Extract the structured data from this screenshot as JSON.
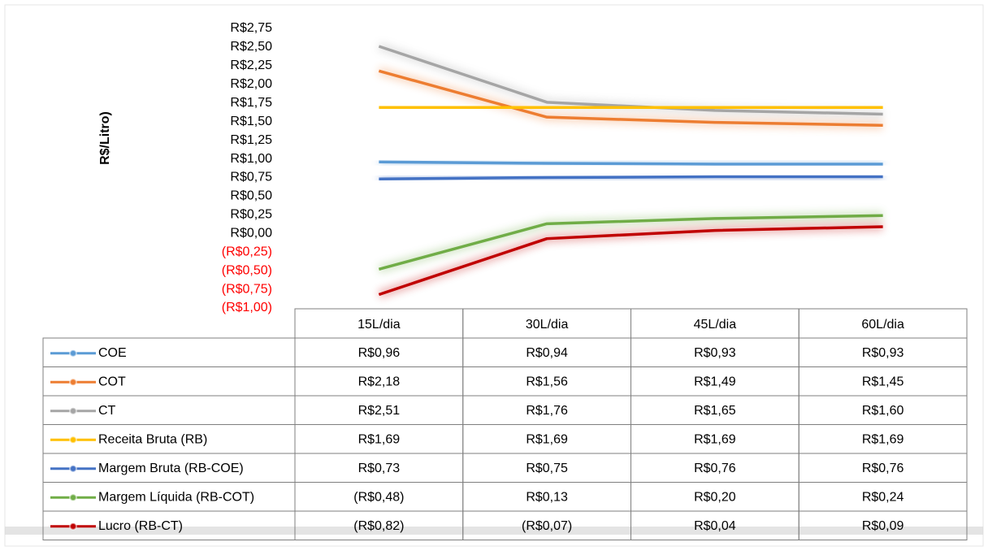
{
  "chart_data": {
    "type": "line",
    "y_label": "R$/Litro)",
    "categories": [
      "15L/dia",
      "30L/dia",
      "45L/dia",
      "60L/dia"
    ],
    "ylim": [
      -1,
      2.75
    ],
    "yticks": [
      {
        "value": 2.75,
        "label": "R$2,75"
      },
      {
        "value": 2.5,
        "label": "R$2,50"
      },
      {
        "value": 2.25,
        "label": "R$2,25"
      },
      {
        "value": 2,
        "label": "R$2,00"
      },
      {
        "value": 1.75,
        "label": "R$1,75"
      },
      {
        "value": 1.5,
        "label": "R$1,50"
      },
      {
        "value": 1.25,
        "label": "R$1,25"
      },
      {
        "value": 1,
        "label": "R$1,00"
      },
      {
        "value": 0.75,
        "label": "R$0,75"
      },
      {
        "value": 0.5,
        "label": "R$0,50"
      },
      {
        "value": 0.25,
        "label": "R$0,25"
      },
      {
        "value": 0,
        "label": "R$0,00"
      },
      {
        "value": -0.25,
        "label": "(R$0,25)"
      },
      {
        "value": -0.5,
        "label": "(R$0,50)"
      },
      {
        "value": -0.75,
        "label": "(R$0,75)"
      },
      {
        "value": -1,
        "label": "(R$1,00)"
      }
    ],
    "negative_tick_color": "#ff0000",
    "grid": false,
    "series": [
      {
        "name": "COE",
        "color": "#5b9bd5",
        "values": [
          0.96,
          0.94,
          0.93,
          0.93
        ],
        "value_labels": [
          "R$0,96",
          "R$0,94",
          "R$0,93",
          "R$0,93"
        ]
      },
      {
        "name": "COT",
        "color": "#ed7d31",
        "values": [
          2.18,
          1.56,
          1.49,
          1.45
        ],
        "value_labels": [
          "R$2,18",
          "R$1,56",
          "R$1,49",
          "R$1,45"
        ]
      },
      {
        "name": "CT",
        "color": "#a5a5a5",
        "values": [
          2.51,
          1.76,
          1.65,
          1.6
        ],
        "value_labels": [
          "R$2,51",
          "R$1,76",
          "R$1,65",
          "R$1,60"
        ]
      },
      {
        "name": "Receita Bruta (RB)",
        "color": "#ffc000",
        "values": [
          1.69,
          1.69,
          1.69,
          1.69
        ],
        "value_labels": [
          "R$1,69",
          "R$1,69",
          "R$1,69",
          "R$1,69"
        ]
      },
      {
        "name": "Margem Bruta (RB-COE)",
        "color": "#4472c4",
        "values": [
          0.73,
          0.75,
          0.76,
          0.76
        ],
        "value_labels": [
          "R$0,73",
          "R$0,75",
          "R$0,76",
          "R$0,76"
        ]
      },
      {
        "name": "Margem Líquida (RB-COT)",
        "color": "#70ad47",
        "values": [
          -0.48,
          0.13,
          0.2,
          0.24
        ],
        "value_labels": [
          "(R$0,48)",
          "R$0,13",
          "R$0,20",
          "R$0,24"
        ]
      },
      {
        "name": "Lucro (RB-CT)",
        "color": "#c00000",
        "values": [
          -0.82,
          -0.07,
          0.04,
          0.09
        ],
        "value_labels": [
          "(R$0,82)",
          "(R$0,07)",
          "R$0,04",
          "R$0,09"
        ]
      }
    ]
  }
}
